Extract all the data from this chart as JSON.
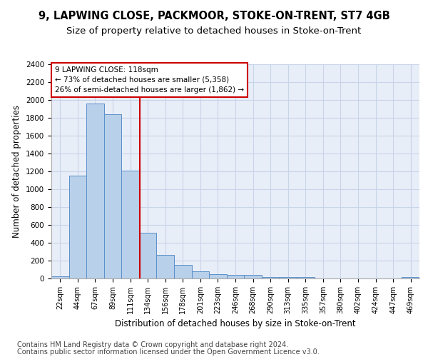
{
  "title1": "9, LAPWING CLOSE, PACKMOOR, STOKE-ON-TRENT, ST7 4GB",
  "title2": "Size of property relative to detached houses in Stoke-on-Trent",
  "xlabel": "Distribution of detached houses by size in Stoke-on-Trent",
  "ylabel": "Number of detached properties",
  "footer1": "Contains HM Land Registry data © Crown copyright and database right 2024.",
  "footer2": "Contains public sector information licensed under the Open Government Licence v3.0.",
  "annotation_line1": "9 LAPWING CLOSE: 118sqm",
  "annotation_line2": "← 73% of detached houses are smaller (5,358)",
  "annotation_line3": "26% of semi-detached houses are larger (1,862) →",
  "bar_labels": [
    "22sqm",
    "44sqm",
    "67sqm",
    "89sqm",
    "111sqm",
    "134sqm",
    "156sqm",
    "178sqm",
    "201sqm",
    "223sqm",
    "246sqm",
    "268sqm",
    "290sqm",
    "313sqm",
    "335sqm",
    "357sqm",
    "380sqm",
    "402sqm",
    "424sqm",
    "447sqm",
    "469sqm"
  ],
  "bar_values": [
    28,
    1150,
    1960,
    1840,
    1210,
    510,
    265,
    155,
    80,
    50,
    42,
    40,
    20,
    18,
    15,
    2,
    2,
    2,
    2,
    2,
    18
  ],
  "bar_color": "#b8d0ea",
  "bar_edge_color": "#5b8fc9",
  "vline_color": "#cc0000",
  "vline_x_index": 4.55,
  "annotation_box_edgecolor": "#cc0000",
  "ylim_max": 2400,
  "ytick_step": 200,
  "grid_color": "#c8d4e8",
  "plot_bg_color": "#e8eef8",
  "title1_fontsize": 10.5,
  "title2_fontsize": 9.5,
  "tick_label_fontsize": 7,
  "ylabel_fontsize": 8.5,
  "xlabel_fontsize": 8.5,
  "annot_fontsize": 7.5,
  "footer_fontsize": 7
}
